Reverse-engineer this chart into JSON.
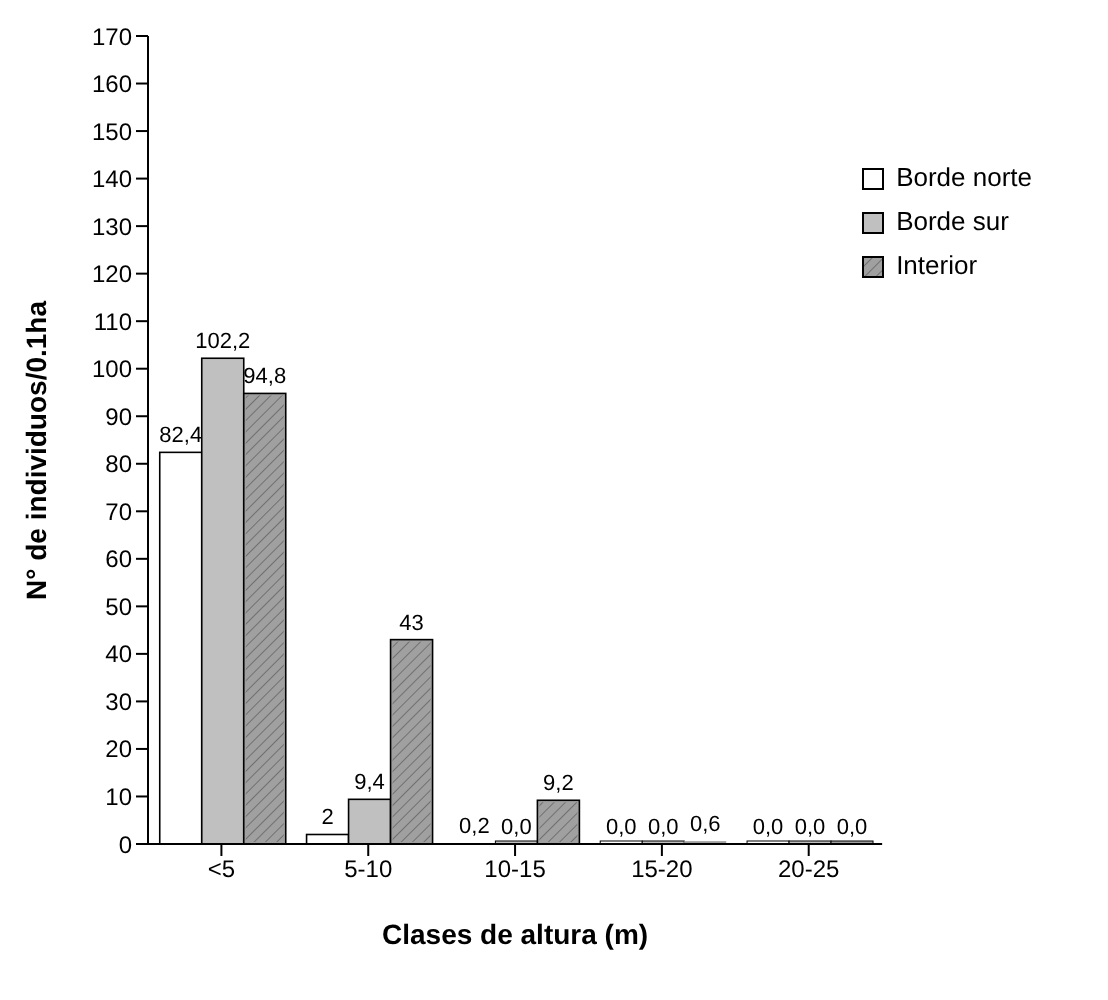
{
  "chart_data": {
    "type": "bar",
    "xlabel": "Clases de altura (m)",
    "ylabel": "N° de individuos/0.1ha",
    "categories": [
      "<5",
      "5-10",
      "10-15",
      "15-20",
      "20-25"
    ],
    "series": [
      {
        "name": "Borde norte",
        "color": "#ffffff",
        "values": [
          82.4,
          2,
          0.2,
          0,
          0
        ],
        "value_labels": [
          "82,4",
          "2",
          "0,2",
          "0,0",
          "0,0"
        ]
      },
      {
        "name": "Borde sur",
        "color": "#c0c0c0",
        "values": [
          102.2,
          9.4,
          0,
          0,
          0
        ],
        "value_labels": [
          "102,2",
          "9,4",
          "0,0",
          "0,0",
          "0,0"
        ]
      },
      {
        "name": "Interior",
        "color": "#a0a0a0",
        "values": [
          94.8,
          43,
          9.2,
          0.6,
          0
        ],
        "value_labels": [
          "94,8",
          "43",
          "9,2",
          "0,6",
          "0,0"
        ]
      }
    ],
    "ylim": [
      0,
      170
    ],
    "yticks": [
      0,
      10,
      20,
      30,
      40,
      50,
      60,
      70,
      80,
      90,
      100,
      110,
      120,
      130,
      140,
      150,
      160,
      170
    ],
    "grid": false,
    "legend": "top right"
  }
}
